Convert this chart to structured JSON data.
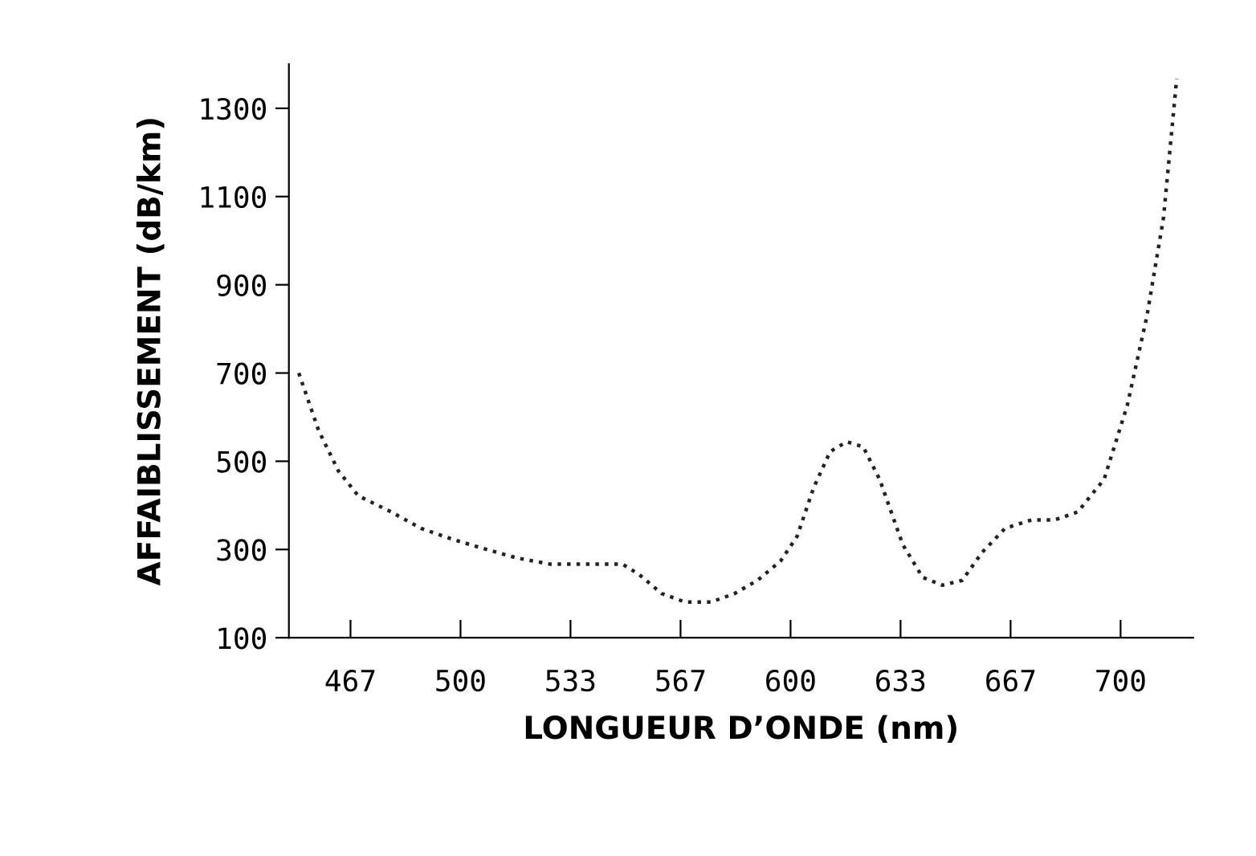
{
  "chart_data": {
    "type": "line",
    "xlabel": "LONGUEUR D’ONDE (nm)",
    "ylabel": "AFFAIBLISSEMENT (dB/km)",
    "x": [
      451,
      457,
      463,
      469,
      479,
      488,
      498,
      508,
      517,
      527,
      534,
      542,
      549,
      554,
      561,
      568,
      576,
      583,
      590,
      597,
      602,
      607,
      612,
      617,
      622,
      627,
      634,
      640,
      646,
      652,
      658,
      665,
      673,
      680,
      687,
      695,
      702,
      708,
      713,
      717
    ],
    "series": [
      {
        "color": "#222222",
        "values": [
          700,
          570,
          478,
          422,
          385,
          348,
          322,
          300,
          281,
          267,
          267,
          267,
          267,
          244,
          200,
          181,
          181,
          200,
          230,
          274,
          330,
          440,
          522,
          544,
          533,
          459,
          311,
          237,
          219,
          230,
          293,
          348,
          367,
          367,
          385,
          459,
          626,
          830,
          1052,
          1367
        ]
      }
    ],
    "xlim": [
      448,
      722
    ],
    "ylim": [
      100,
      1400
    ],
    "xticks": [
      {
        "value": 466.67,
        "label": "467"
      },
      500,
      {
        "value": 533.33,
        "label": "533"
      },
      {
        "value": 566.67,
        "label": "567"
      },
      600,
      {
        "value": 633.33,
        "label": "633"
      },
      {
        "value": 666.67,
        "label": "667"
      },
      700
    ],
    "yticks": [
      100,
      300,
      500,
      700,
      900,
      1100,
      1300
    ],
    "grid": false,
    "legend": false,
    "line_style": "dotted"
  }
}
